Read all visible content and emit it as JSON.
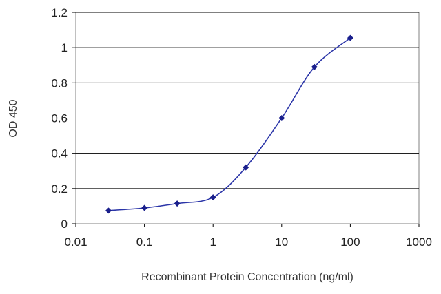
{
  "chart_data": {
    "type": "line",
    "title": "",
    "xlabel": "Recombinant Protein Concentration (ng/ml)",
    "ylabel": "OD 450",
    "x_scale": "log",
    "xlim": [
      0.01,
      1000
    ],
    "ylim": [
      0,
      1.2
    ],
    "x_ticks": [
      "0.01",
      "0.1",
      "1",
      "10",
      "100",
      "1000"
    ],
    "y_ticks": [
      "0",
      "0.2",
      "0.4",
      "0.6",
      "0.8",
      "1",
      "1.2"
    ],
    "grid": "horizontal",
    "legend": "none",
    "series": [
      {
        "x": [
          0.03,
          0.1,
          0.3,
          1,
          3,
          10,
          30,
          100
        ],
        "y": [
          0.075,
          0.09,
          0.115,
          0.15,
          0.32,
          0.6,
          0.89,
          1.055
        ]
      }
    ],
    "colors": {
      "line": "#2b35a8",
      "marker": "#1a1f8c",
      "grid": "#000000",
      "frame": "#808080",
      "background": "#ffffff"
    }
  }
}
